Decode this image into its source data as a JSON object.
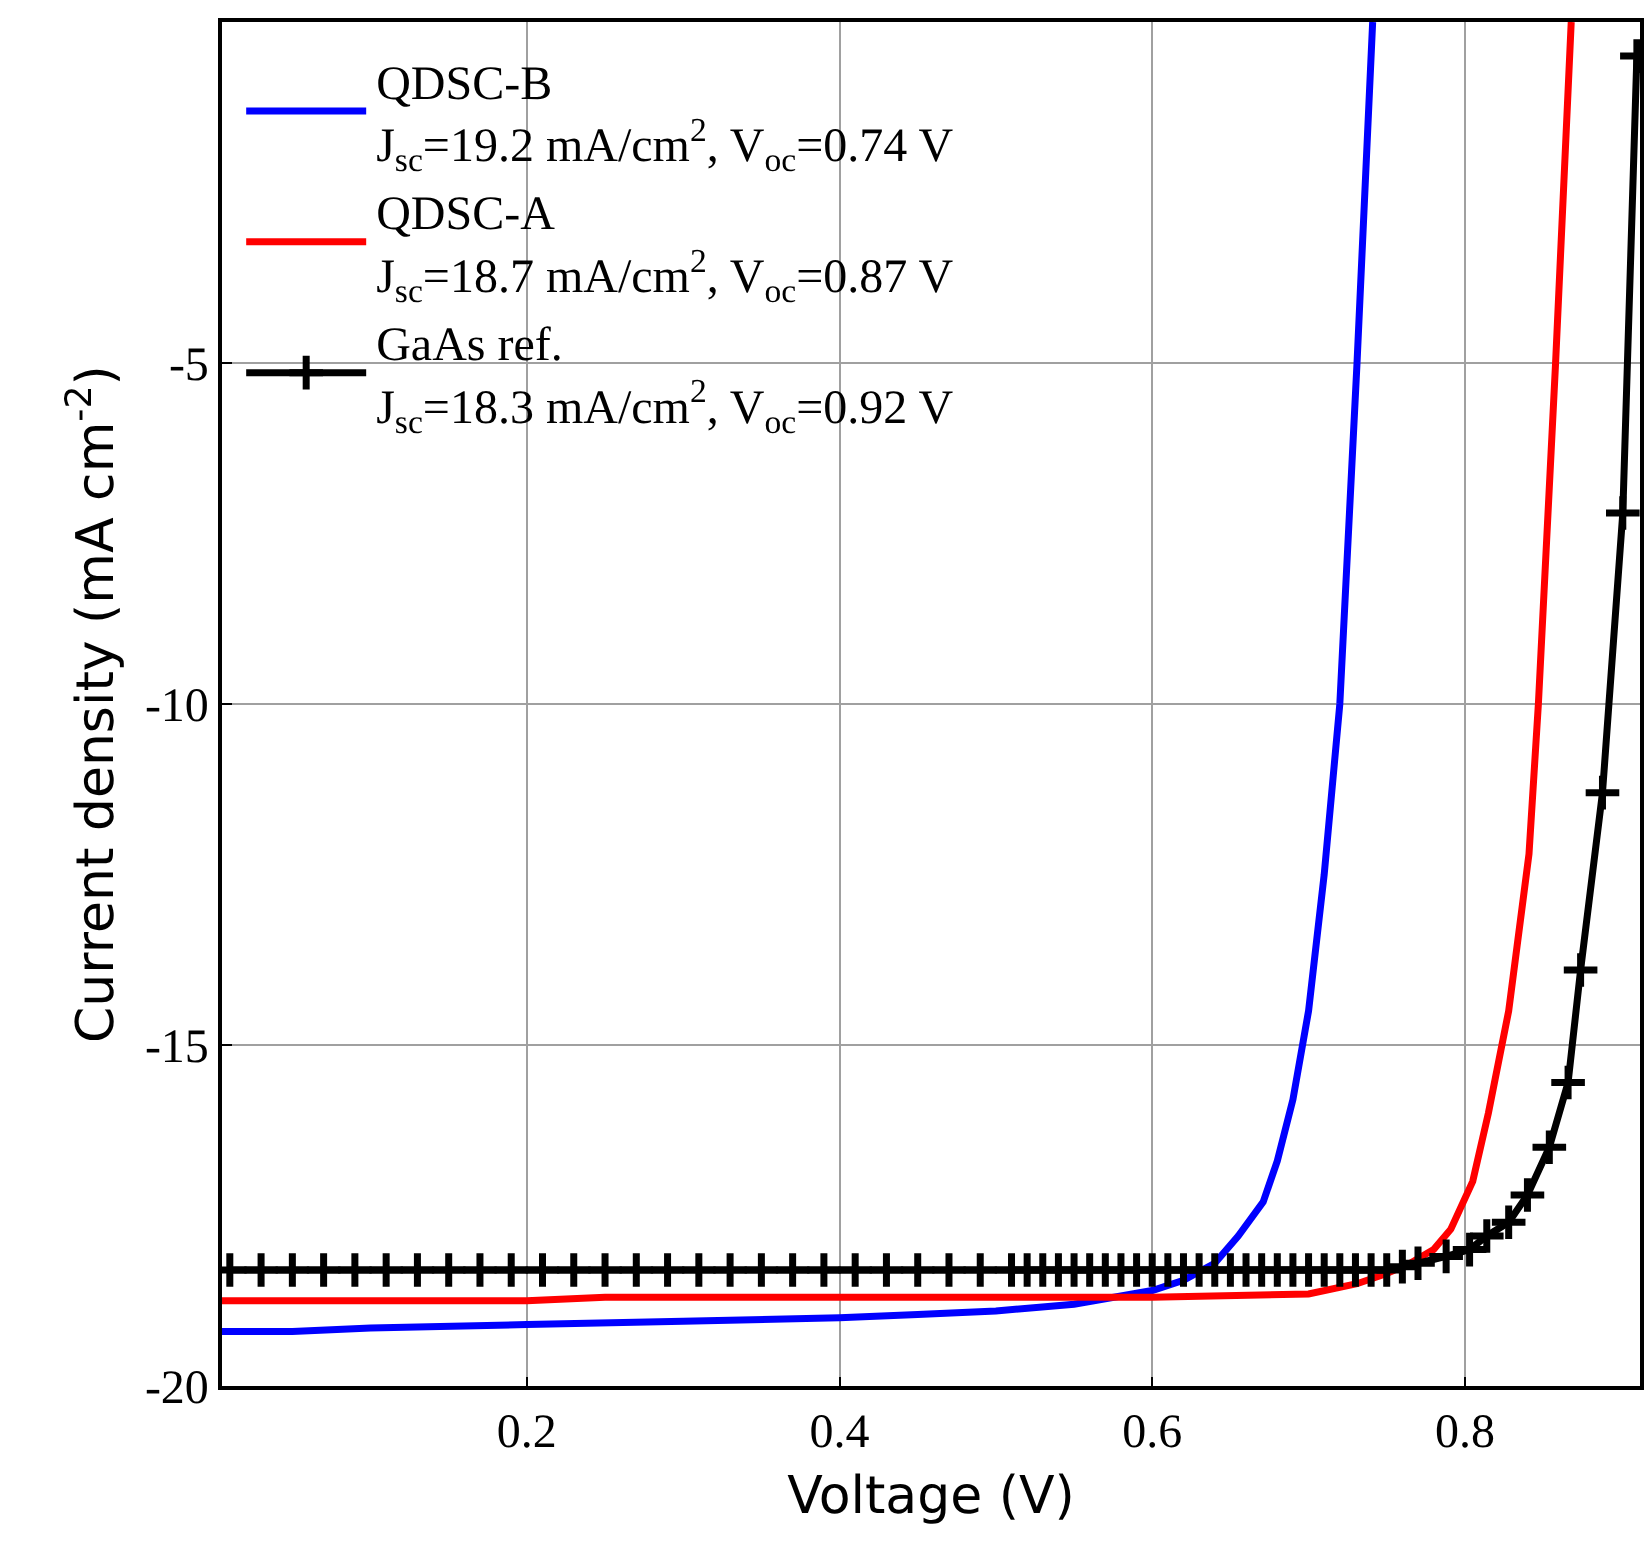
{
  "chart_data": {
    "type": "line",
    "xlabel": "Voltage (V)",
    "ylabel": "Current density (mA cm$^{-2}$)",
    "xlim": [
      0.005,
      0.912
    ],
    "ylim": [
      -20,
      0
    ],
    "xticks": [
      0.2,
      0.4,
      0.6,
      0.8
    ],
    "yticks": [
      -5,
      -10,
      -15,
      -20
    ],
    "grid": true,
    "legend": "top left",
    "line_style": "solid",
    "series": [
      {
        "name": "QDSC-B\nJ$_{sc}$=19.2 mA/cm$^{2}$, V$_{oc}$=0.74 V",
        "color": "#0000ff",
        "marker": "none",
        "x": [
          0.005,
          0.05,
          0.1,
          0.2,
          0.3,
          0.4,
          0.45,
          0.5,
          0.55,
          0.6,
          0.62,
          0.64,
          0.655,
          0.671,
          0.68,
          0.69,
          0.7,
          0.71,
          0.72,
          0.731,
          0.741
        ],
        "values": [
          -19.2,
          -19.2,
          -19.15,
          -19.1,
          -19.05,
          -19.0,
          -18.95,
          -18.9,
          -18.8,
          -18.6,
          -18.45,
          -18.2,
          -17.8,
          -17.3,
          -16.7,
          -15.8,
          -14.5,
          -12.5,
          -10,
          -5,
          0
        ]
      },
      {
        "name": "QDSC-A\nJ$_{sc}$=18.7 mA/cm$^{2}$, V$_{oc}$=0.87 V",
        "color": "#ff0000",
        "marker": "none",
        "x": [
          0.005,
          0.2,
          0.25,
          0.4,
          0.6,
          0.7,
          0.731,
          0.75,
          0.765,
          0.78,
          0.791,
          0.805,
          0.815,
          0.828,
          0.841,
          0.847,
          0.858,
          0.868
        ],
        "values": [
          -18.75,
          -18.75,
          -18.7,
          -18.7,
          -18.7,
          -18.65,
          -18.5,
          -18.35,
          -18.2,
          -18.0,
          -17.7,
          -17.0,
          -16.0,
          -14.5,
          -12.2,
          -10,
          -5,
          0
        ]
      },
      {
        "name": "GaAs ref.\nJ$_{sc}$=18.3 mA/cm$^{2}$, V$_{oc}$=0.92 V",
        "color": "#000000",
        "marker": "cross",
        "x": [
          0.01,
          0.03,
          0.05,
          0.07,
          0.09,
          0.11,
          0.13,
          0.15,
          0.17,
          0.19,
          0.21,
          0.23,
          0.25,
          0.27,
          0.29,
          0.31,
          0.33,
          0.35,
          0.37,
          0.39,
          0.41,
          0.43,
          0.45,
          0.47,
          0.49,
          0.51,
          0.52,
          0.53,
          0.54,
          0.55,
          0.56,
          0.57,
          0.58,
          0.59,
          0.6,
          0.61,
          0.62,
          0.63,
          0.64,
          0.65,
          0.66,
          0.67,
          0.68,
          0.69,
          0.7,
          0.71,
          0.72,
          0.73,
          0.74,
          0.75,
          0.76,
          0.77,
          0.788,
          0.803,
          0.814,
          0.828,
          0.84,
          0.854,
          0.866,
          0.874,
          0.888,
          0.901,
          0.91
        ],
        "values": [
          -18.3,
          -18.3,
          -18.3,
          -18.3,
          -18.3,
          -18.3,
          -18.3,
          -18.3,
          -18.3,
          -18.3,
          -18.3,
          -18.3,
          -18.3,
          -18.3,
          -18.3,
          -18.3,
          -18.3,
          -18.3,
          -18.3,
          -18.3,
          -18.3,
          -18.3,
          -18.3,
          -18.3,
          -18.3,
          -18.3,
          -18.3,
          -18.3,
          -18.3,
          -18.3,
          -18.3,
          -18.3,
          -18.3,
          -18.3,
          -18.3,
          -18.3,
          -18.3,
          -18.3,
          -18.3,
          -18.3,
          -18.3,
          -18.3,
          -18.3,
          -18.3,
          -18.3,
          -18.3,
          -18.3,
          -18.3,
          -18.3,
          -18.3,
          -18.25,
          -18.2,
          -18.1,
          -18.0,
          -17.8,
          -17.6,
          -17.2,
          -16.5,
          -15.55,
          -13.9,
          -11.3,
          -7.2,
          -0.5
        ]
      }
    ]
  }
}
